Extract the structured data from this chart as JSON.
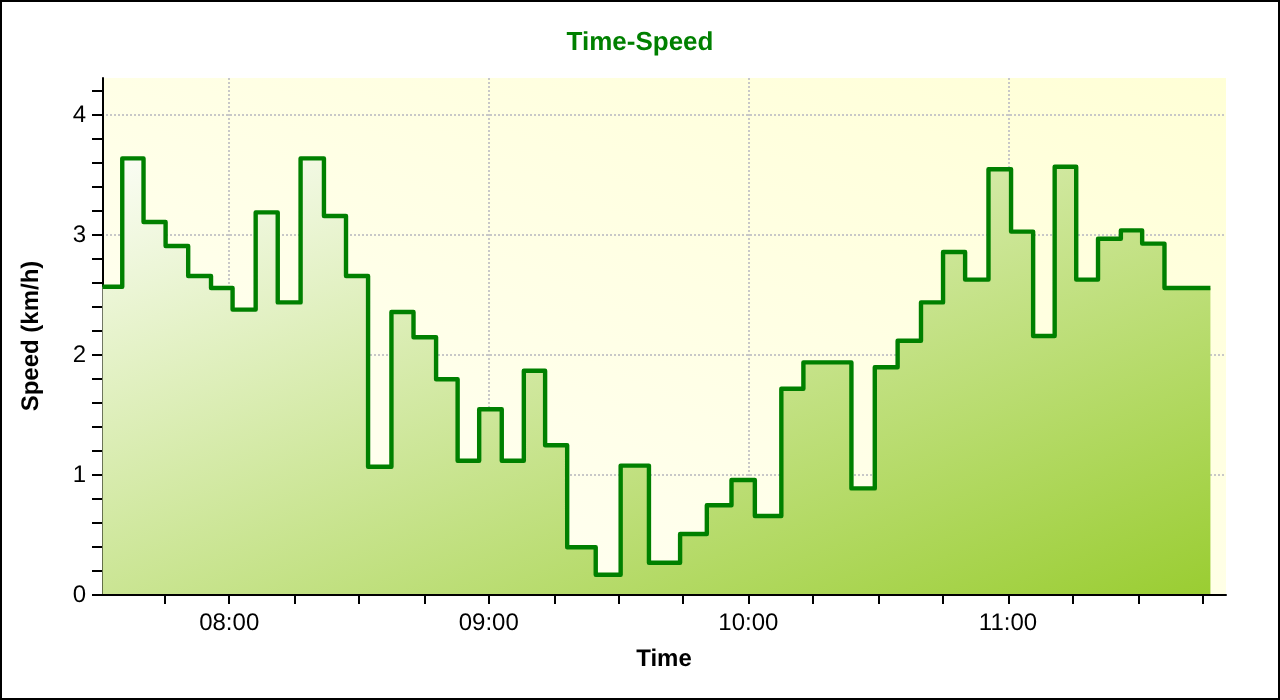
{
  "chart_data": {
    "type": "area",
    "title": "Time-Speed",
    "xlabel": "Time",
    "ylabel": "Speed (km/h)",
    "x": [
      7.512,
      7.588,
      7.588,
      7.67,
      7.67,
      7.755,
      7.755,
      7.842,
      7.842,
      7.93,
      7.93,
      8.013,
      8.013,
      8.102,
      8.102,
      8.187,
      8.187,
      8.275,
      8.275,
      8.365,
      8.365,
      8.45,
      8.45,
      8.535,
      8.535,
      8.625,
      8.625,
      8.71,
      8.71,
      8.797,
      8.797,
      8.88,
      8.88,
      8.963,
      8.963,
      9.05,
      9.05,
      9.135,
      9.135,
      9.217,
      9.217,
      9.302,
      9.302,
      9.412,
      9.412,
      9.508,
      9.508,
      9.617,
      9.617,
      9.737,
      9.737,
      9.84,
      9.84,
      9.935,
      9.935,
      10.025,
      10.025,
      10.127,
      10.127,
      10.212,
      10.212,
      10.397,
      10.397,
      10.487,
      10.487,
      10.575,
      10.575,
      10.665,
      10.665,
      10.75,
      10.75,
      10.835,
      10.835,
      10.925,
      10.925,
      11.012,
      11.012,
      11.097,
      11.097,
      11.18,
      11.18,
      11.263,
      11.263,
      11.347,
      11.347,
      11.435,
      11.435,
      11.517,
      11.517,
      11.603,
      11.603,
      11.78
    ],
    "series": [
      {
        "color": "#008000",
        "values": [
          2.56,
          2.56,
          3.63,
          3.63,
          3.1,
          3.1,
          2.9,
          2.9,
          2.65,
          2.65,
          2.55,
          2.55,
          2.37,
          2.37,
          3.18,
          3.18,
          2.43,
          2.43,
          3.63,
          3.63,
          3.15,
          3.15,
          2.65,
          2.65,
          1.06,
          1.06,
          2.35,
          2.35,
          2.14,
          2.14,
          1.79,
          1.79,
          1.11,
          1.11,
          1.54,
          1.54,
          1.11,
          1.11,
          1.86,
          1.86,
          1.24,
          1.24,
          0.39,
          0.39,
          0.16,
          0.16,
          1.07,
          1.07,
          0.26,
          0.26,
          0.5,
          0.5,
          0.74,
          0.74,
          0.95,
          0.95,
          0.65,
          0.65,
          1.71,
          1.71,
          1.93,
          1.93,
          0.88,
          0.88,
          1.89,
          1.89,
          2.11,
          2.11,
          2.43,
          2.43,
          2.85,
          2.85,
          2.62,
          2.62,
          3.54,
          3.54,
          3.02,
          3.02,
          2.15,
          2.15,
          3.56,
          3.56,
          2.62,
          2.62,
          2.96,
          2.96,
          3.03,
          3.03,
          2.92,
          2.92,
          2.55,
          2.55
        ]
      }
    ],
    "xlim": [
      7.51,
      11.84
    ],
    "xticks": [
      {
        "value": 7.75,
        "label": null
      },
      {
        "value": 8,
        "label": "08:00"
      },
      {
        "value": 8.25,
        "label": null
      },
      {
        "value": 8.5,
        "label": null
      },
      {
        "value": 8.75,
        "label": null
      },
      {
        "value": 9,
        "label": "09:00"
      },
      {
        "value": 9.25,
        "label": null
      },
      {
        "value": 9.5,
        "label": null
      },
      {
        "value": 9.75,
        "label": null
      },
      {
        "value": 10,
        "label": "10:00"
      },
      {
        "value": 10.25,
        "label": null
      },
      {
        "value": 10.5,
        "label": null
      },
      {
        "value": 10.75,
        "label": null
      },
      {
        "value": 11,
        "label": "11:00"
      },
      {
        "value": 11.25,
        "label": null
      },
      {
        "value": 11.5,
        "label": null
      },
      {
        "value": 11.75,
        "label": null
      }
    ],
    "ylim": [
      0,
      4.3
    ],
    "yticks": [
      0,
      {
        "value": 0.2,
        "label": null
      },
      {
        "value": 0.4,
        "label": null
      },
      {
        "value": 0.6,
        "label": null
      },
      {
        "value": 0.8,
        "label": null
      },
      1,
      {
        "value": 1.2,
        "label": null
      },
      {
        "value": 1.4,
        "label": null
      },
      {
        "value": 1.6,
        "label": null
      },
      {
        "value": 1.8,
        "label": null
      },
      2,
      {
        "value": 2.2,
        "label": null
      },
      {
        "value": 2.4,
        "label": null
      },
      {
        "value": 2.6,
        "label": null
      },
      {
        "value": 2.8,
        "label": null
      },
      3,
      {
        "value": 3.2,
        "label": null
      },
      {
        "value": 3.4,
        "label": null
      },
      {
        "value": 3.6,
        "label": null
      },
      {
        "value": 3.8,
        "label": null
      },
      4,
      {
        "value": 4.2,
        "label": null
      }
    ],
    "grid": true,
    "marker": "none",
    "line_style": "solid"
  }
}
